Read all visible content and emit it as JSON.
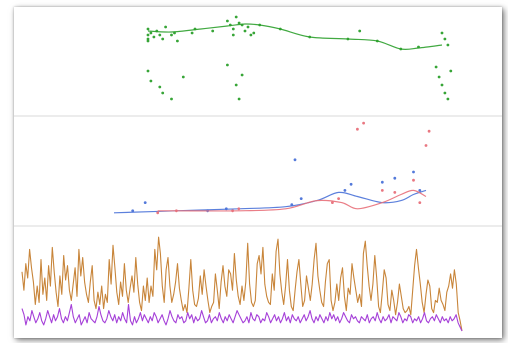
{
  "colors": {
    "green": "#2ca02c",
    "red": "#e8707a",
    "blue": "#4a72d8",
    "orange": "#c8853a",
    "purple": "#a540d8",
    "divider": "#d9d9d9"
  },
  "chart_data": [
    {
      "type": "scatter",
      "panel": "top",
      "title": "",
      "xlabel": "",
      "ylabel": "",
      "grid": false,
      "x_range": [
        0,
        100
      ],
      "y_range": [
        0,
        100
      ],
      "series": [
        {
          "color": "#2ca02c",
          "kind": "points-with-smooth-line",
          "smooth_line": [
            [
              0,
              80
            ],
            [
              8,
              79
            ],
            [
              18,
              82
            ],
            [
              27,
              85
            ],
            [
              33,
              87
            ],
            [
              38,
              86
            ],
            [
              45,
              82
            ],
            [
              55,
              74
            ],
            [
              68,
              72
            ],
            [
              78,
              70
            ],
            [
              86,
              62
            ],
            [
              92,
              63
            ],
            [
              100,
              66
            ]
          ],
          "points": [
            [
              0,
              82
            ],
            [
              0,
              76
            ],
            [
              0,
              72
            ],
            [
              0,
              70
            ],
            [
              1,
              78
            ],
            [
              2,
              74
            ],
            [
              3,
              80
            ],
            [
              4,
              76
            ],
            [
              5,
              72
            ],
            [
              6,
              84
            ],
            [
              8,
              76
            ],
            [
              9,
              78
            ],
            [
              10,
              70
            ],
            [
              15,
              78
            ],
            [
              16,
              82
            ],
            [
              22,
              80
            ],
            [
              27,
              90
            ],
            [
              28,
              86
            ],
            [
              29,
              82
            ],
            [
              29,
              76
            ],
            [
              30,
              94
            ],
            [
              31,
              88
            ],
            [
              32,
              86
            ],
            [
              33,
              80
            ],
            [
              34,
              84
            ],
            [
              35,
              76
            ],
            [
              36,
              78
            ],
            [
              38,
              86
            ],
            [
              45,
              82
            ],
            [
              55,
              74
            ],
            [
              68,
              72
            ],
            [
              72,
              80
            ],
            [
              78,
              70
            ],
            [
              86,
              62
            ],
            [
              92,
              64
            ],
            [
              100,
              78
            ],
            [
              101,
              72
            ],
            [
              102,
              66
            ],
            [
              0,
              40
            ],
            [
              1,
              30
            ],
            [
              4,
              24
            ],
            [
              5,
              18
            ],
            [
              8,
              12
            ],
            [
              12,
              34
            ],
            [
              27,
              46
            ],
            [
              30,
              26
            ],
            [
              31,
              12
            ],
            [
              32,
              36
            ],
            [
              98,
              44
            ],
            [
              99,
              34
            ],
            [
              100,
              26
            ],
            [
              101,
              18
            ],
            [
              102,
              12
            ],
            [
              103,
              40
            ]
          ]
        }
      ]
    },
    {
      "type": "scatter",
      "panel": "middle",
      "title": "",
      "xlabel": "",
      "ylabel": "",
      "grid": false,
      "x_range": [
        0,
        100
      ],
      "y_range": [
        0,
        100
      ],
      "series": [
        {
          "color": "#4a72d8",
          "kind": "smooth-line-with-points",
          "smooth_line": [
            [
              0,
              8
            ],
            [
              20,
              10
            ],
            [
              40,
              12
            ],
            [
              55,
              14
            ],
            [
              65,
              20
            ],
            [
              72,
              28
            ],
            [
              78,
              24
            ],
            [
              86,
              18
            ],
            [
              92,
              20
            ],
            [
              96,
              26
            ],
            [
              100,
              30
            ]
          ],
          "points": [
            [
              6,
              10
            ],
            [
              10,
              18
            ],
            [
              30,
              10
            ],
            [
              36,
              12
            ],
            [
              57,
              16
            ],
            [
              58,
              60
            ],
            [
              60,
              22
            ],
            [
              74,
              30
            ],
            [
              76,
              36
            ],
            [
              86,
              38
            ],
            [
              90,
              42
            ],
            [
              96,
              48
            ],
            [
              98,
              30
            ]
          ]
        },
        {
          "color": "#e8707a",
          "kind": "smooth-line-with-points",
          "smooth_line": [
            [
              14,
              10
            ],
            [
              20,
              10
            ],
            [
              40,
              10
            ],
            [
              55,
              12
            ],
            [
              65,
              20
            ],
            [
              73,
              18
            ],
            [
              78,
              12
            ],
            [
              86,
              18
            ],
            [
              92,
              26
            ],
            [
              96,
              30
            ],
            [
              100,
              24
            ]
          ],
          "points": [
            [
              14,
              8
            ],
            [
              20,
              10
            ],
            [
              38,
              10
            ],
            [
              40,
              12
            ],
            [
              70,
              18
            ],
            [
              72,
              22
            ],
            [
              78,
              90
            ],
            [
              80,
              96
            ],
            [
              86,
              30
            ],
            [
              90,
              28
            ],
            [
              96,
              40
            ],
            [
              98,
              18
            ],
            [
              100,
              74
            ],
            [
              101,
              88
            ]
          ]
        }
      ]
    },
    {
      "type": "line",
      "panel": "bottom",
      "title": "",
      "xlabel": "",
      "ylabel": "",
      "grid": false,
      "y_range": [
        0,
        100
      ],
      "series": [
        {
          "color": "#c8853a",
          "values": [
            58,
            40,
            66,
            52,
            80,
            62,
            48,
            26,
            44,
            28,
            70,
            36,
            52,
            30,
            64,
            44,
            82,
            58,
            38,
            24,
            54,
            36,
            74,
            50,
            64,
            40,
            30,
            46,
            62,
            34,
            80,
            54,
            72,
            48,
            36,
            28,
            48,
            64,
            30,
            22,
            38,
            26,
            44,
            22,
            36,
            28,
            70,
            46,
            84,
            62,
            38,
            26,
            48,
            34,
            66,
            40,
            28,
            42,
            54,
            38,
            72,
            46,
            28,
            20,
            44,
            30,
            52,
            28,
            44,
            34,
            80,
            60,
            92,
            76,
            44,
            28,
            60,
            72,
            44,
            28,
            36,
            48,
            66,
            42,
            30,
            20,
            26,
            18,
            42,
            70,
            40,
            26,
            24,
            32,
            54,
            36,
            60,
            44,
            30,
            18,
            24,
            28,
            56,
            40,
            22,
            48,
            64,
            44,
            34,
            60,
            56,
            40,
            76,
            50,
            34,
            26,
            44,
            30,
            48,
            86,
            46,
            28,
            24,
            30,
            66,
            74,
            56,
            82,
            46,
            34,
            28,
            26,
            56,
            40,
            78,
            90,
            56,
            38,
            26,
            44,
            70,
            40,
            24,
            20,
            40,
            58,
            70,
            46,
            24,
            30,
            54,
            42,
            30,
            46,
            70,
            86,
            54,
            40,
            28,
            24,
            48,
            66,
            70,
            30,
            20,
            28,
            46,
            30,
            52,
            62,
            34,
            20,
            42,
            36,
            66,
            52,
            40,
            28,
            36,
            24,
            76,
            88,
            64,
            44,
            30,
            46,
            74,
            52,
            24,
            18,
            38,
            60,
            52,
            26,
            20,
            40,
            30,
            16,
            28,
            46,
            34,
            22,
            18,
            20,
            24,
            16,
            40,
            64,
            80,
            62,
            46,
            28,
            18,
            36,
            50,
            44,
            22,
            18,
            30,
            28,
            42,
            30,
            26,
            20,
            38,
            44,
            56,
            42,
            60,
            46,
            18,
            10,
            0
          ]
        },
        {
          "color": "#a540d8",
          "values": [
            22,
            16,
            6,
            14,
            10,
            20,
            14,
            8,
            12,
            18,
            10,
            6,
            12,
            20,
            14,
            8,
            16,
            10,
            14,
            22,
            12,
            8,
            14,
            10,
            18,
            26,
            14,
            8,
            12,
            16,
            6,
            10,
            14,
            8,
            18,
            12,
            10,
            8,
            14,
            24,
            16,
            10,
            8,
            12,
            20,
            14,
            10,
            16,
            8,
            14,
            10,
            18,
            12,
            8,
            26,
            10,
            6,
            14,
            8,
            12,
            18,
            10,
            16,
            12,
            8,
            14,
            10,
            18,
            14,
            8,
            12,
            16,
            10,
            6,
            12,
            20,
            14,
            10,
            8,
            16,
            12,
            14,
            8,
            10,
            18,
            12,
            16,
            8,
            14,
            10,
            12,
            20,
            14,
            8,
            10,
            16,
            8,
            12,
            14,
            10,
            18,
            12,
            8,
            14,
            10,
            16,
            12,
            8,
            14,
            20,
            16,
            12,
            8,
            10,
            14,
            8,
            18,
            12,
            10,
            16,
            14,
            8,
            12,
            10,
            18,
            14,
            8,
            12,
            16,
            10,
            14,
            8,
            12,
            18,
            10,
            14,
            8,
            16,
            12,
            10,
            14,
            8,
            12,
            16,
            10,
            14,
            20,
            12,
            8,
            14,
            10,
            16,
            12,
            8,
            14,
            10,
            18,
            12,
            16,
            10,
            14,
            8,
            12,
            18,
            14,
            10,
            8,
            16,
            12,
            14,
            10,
            8,
            14,
            12,
            10,
            16,
            8,
            12,
            14,
            10,
            18,
            12,
            8,
            14,
            10,
            12,
            16,
            8,
            14,
            12,
            10,
            18,
            14,
            8,
            12,
            10,
            16,
            14,
            8,
            12,
            10,
            14,
            8,
            12,
            18,
            10,
            8,
            12,
            14,
            10,
            16,
            12,
            8,
            14,
            10,
            12,
            8,
            14,
            10,
            12,
            16,
            8,
            4,
            0
          ]
        }
      ]
    }
  ]
}
